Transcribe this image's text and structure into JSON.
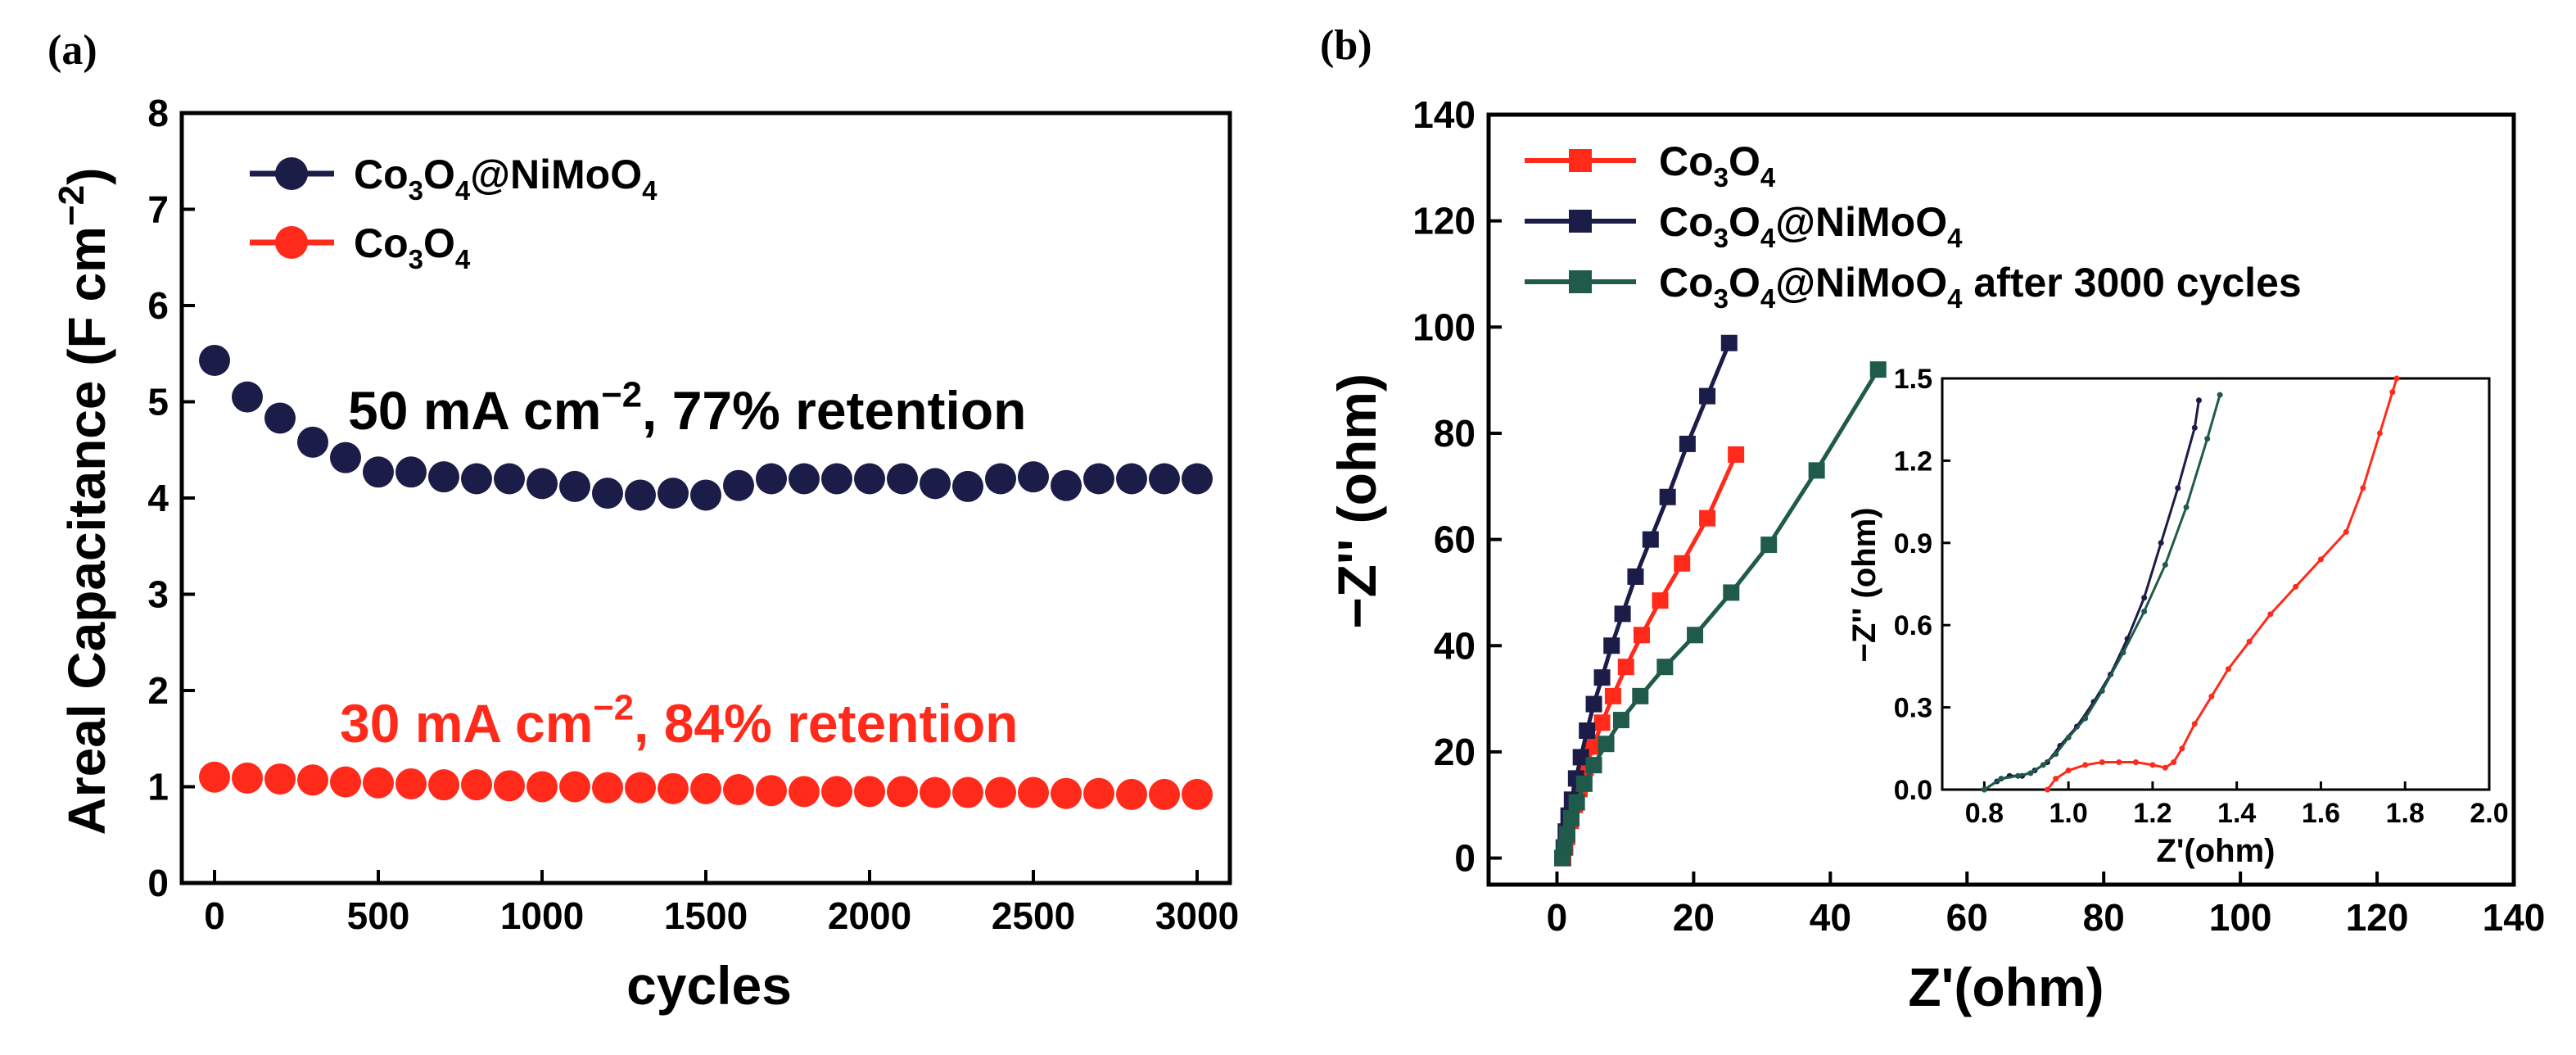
{
  "chart_data": [
    {
      "panel": "(a)",
      "type": "scatter",
      "xlabel": "cycles",
      "ylabel": "Areal Capacitance (F cm",
      "ylabel_sup": "−2",
      "ylabel_close": ")",
      "xlim": [
        -100,
        3100
      ],
      "ylim": [
        0,
        8
      ],
      "xticks": [
        0,
        500,
        1000,
        1500,
        2000,
        2500,
        3000
      ],
      "yticks": [
        0,
        1,
        2,
        3,
        4,
        5,
        6,
        7,
        8
      ],
      "legend": [
        {
          "parts": [
            [
              "Co",
              ""
            ],
            [
              "3",
              "sub"
            ],
            [
              "O",
              ""
            ],
            [
              "4",
              "sub"
            ],
            [
              "@NiMoO",
              ""
            ],
            [
              "4",
              "sub"
            ]
          ],
          "color": "#1c1c48"
        },
        {
          "parts": [
            [
              "Co",
              ""
            ],
            [
              "3",
              "sub"
            ],
            [
              "O",
              ""
            ],
            [
              "4",
              "sub"
            ]
          ],
          "color": "#ff2a1a"
        }
      ],
      "annotations": [
        {
          "parts": [
            [
              "50 mA cm",
              ""
            ],
            [
              "−2",
              "sup"
            ],
            [
              ", 77% retention",
              ""
            ]
          ],
          "color": "#000000"
        },
        {
          "parts": [
            [
              "30 mA cm",
              ""
            ],
            [
              "−2",
              "sup"
            ],
            [
              ", 84% retention",
              ""
            ]
          ],
          "color": "#ff2a1a"
        }
      ],
      "series": [
        {
          "name": "Co3O4@NiMoO4",
          "color": "#1c1c48",
          "x": [
            0,
            100,
            200,
            300,
            400,
            500,
            600,
            700,
            800,
            900,
            1000,
            1100,
            1200,
            1300,
            1400,
            1500,
            1600,
            1700,
            1800,
            1900,
            2000,
            2100,
            2200,
            2300,
            2400,
            2500,
            2600,
            2700,
            2800,
            2900,
            3000
          ],
          "y": [
            5.43,
            5.05,
            4.83,
            4.58,
            4.42,
            4.27,
            4.27,
            4.22,
            4.2,
            4.2,
            4.15,
            4.12,
            4.05,
            4.03,
            4.05,
            4.03,
            4.13,
            4.2,
            4.2,
            4.2,
            4.2,
            4.2,
            4.15,
            4.12,
            4.2,
            4.22,
            4.13,
            4.2,
            4.2,
            4.2,
            4.2
          ]
        },
        {
          "name": "Co3O4",
          "color": "#ff2a1a",
          "x": [
            0,
            100,
            200,
            300,
            400,
            500,
            600,
            700,
            800,
            900,
            1000,
            1100,
            1200,
            1300,
            1400,
            1500,
            1600,
            1700,
            1800,
            1900,
            2000,
            2100,
            2200,
            2300,
            2400,
            2500,
            2600,
            2700,
            2800,
            2900,
            3000
          ],
          "y": [
            1.1,
            1.09,
            1.08,
            1.07,
            1.05,
            1.04,
            1.03,
            1.02,
            1.02,
            1.01,
            1.0,
            1.0,
            0.99,
            0.99,
            0.98,
            0.98,
            0.97,
            0.96,
            0.95,
            0.95,
            0.95,
            0.95,
            0.94,
            0.94,
            0.94,
            0.94,
            0.93,
            0.93,
            0.92,
            0.92,
            0.92
          ]
        }
      ]
    },
    {
      "panel": "(b)",
      "type": "line",
      "xlabel": "Z'(ohm)",
      "ylabel": "−Z'' (ohm)",
      "xlim": [
        -10,
        140
      ],
      "ylim": [
        -5,
        140
      ],
      "xticks": [
        0,
        20,
        40,
        60,
        80,
        100,
        120,
        140
      ],
      "yticks": [
        0,
        20,
        40,
        60,
        80,
        100,
        120,
        140
      ],
      "legend": [
        {
          "parts": [
            [
              "Co",
              ""
            ],
            [
              "3",
              "sub"
            ],
            [
              "O",
              ""
            ],
            [
              "4",
              "sub"
            ]
          ],
          "color": "#ff2a1a"
        },
        {
          "parts": [
            [
              "Co",
              ""
            ],
            [
              "3",
              "sub"
            ],
            [
              "O",
              ""
            ],
            [
              "4",
              "sub"
            ],
            [
              "@NiMoO",
              ""
            ],
            [
              "4",
              "sub"
            ]
          ],
          "color": "#1c1c48"
        },
        {
          "parts": [
            [
              "Co",
              ""
            ],
            [
              "3",
              "sub"
            ],
            [
              "O",
              ""
            ],
            [
              "4",
              "sub"
            ],
            [
              "@NiMoO",
              ""
            ],
            [
              "4",
              "sub"
            ],
            [
              " after 3000 cycles",
              ""
            ]
          ],
          "color": "#1f5a4a"
        }
      ],
      "series": [
        {
          "name": "Co3O4",
          "color": "#ff2a1a",
          "x": [
            0.9,
            1.2,
            1.5,
            2.0,
            2.6,
            3.3,
            4.2,
            5.3,
            6.6,
            8.2,
            10.1,
            12.4,
            15.1,
            18.3,
            22.0,
            26.2
          ],
          "y": [
            0,
            2,
            4,
            7,
            10,
            13,
            17,
            21,
            25.5,
            30.5,
            36,
            42,
            48.5,
            55.5,
            64,
            76
          ]
        },
        {
          "name": "Co3O4@NiMoO4",
          "color": "#1c1c48",
          "x": [
            0.8,
            1.0,
            1.3,
            1.7,
            2.2,
            2.8,
            3.5,
            4.4,
            5.4,
            6.6,
            8.0,
            9.6,
            11.5,
            13.7,
            16.2,
            19.1,
            22.0,
            25.2
          ],
          "y": [
            0,
            2,
            5,
            8,
            11,
            15,
            19,
            24,
            29,
            34,
            40,
            46,
            53,
            60,
            68,
            78,
            87,
            97
          ]
        },
        {
          "name": "Co3O4@NiMoO4 after 3000 cycles",
          "color": "#1f5a4a",
          "x": [
            0.8,
            1.1,
            1.5,
            2.1,
            2.9,
            4.0,
            5.4,
            7.2,
            9.4,
            12.2,
            15.8,
            20.2,
            25.5,
            31.0,
            38.0,
            47.0
          ],
          "y": [
            0,
            2,
            4.5,
            7.5,
            10.5,
            14,
            17.5,
            21.5,
            26,
            30.5,
            36,
            42,
            50,
            59,
            73,
            92
          ]
        }
      ],
      "inset": {
        "xlabel": "Z'(ohm)",
        "ylabel": "−Z'' (ohm)",
        "xlim": [
          0.7,
          2.0
        ],
        "ylim": [
          0,
          1.5
        ],
        "xticks": [
          "0.8",
          "1.0",
          "1.2",
          "1.4",
          "1.6",
          "1.8",
          "2.0"
        ],
        "yticks": [
          "0.0",
          "0.3",
          "0.6",
          "0.9",
          "1.2",
          "1.5"
        ],
        "series": [
          {
            "name": "Co3O4",
            "color": "#ff2a1a",
            "x": [
              0.95,
              0.97,
              1.0,
              1.04,
              1.08,
              1.12,
              1.16,
              1.2,
              1.23,
              1.25,
              1.27,
              1.3,
              1.34,
              1.38,
              1.43,
              1.48,
              1.54,
              1.6,
              1.66,
              1.7,
              1.74,
              1.77,
              1.78
            ],
            "y": [
              0.0,
              0.04,
              0.07,
              0.09,
              0.1,
              0.1,
              0.1,
              0.09,
              0.08,
              0.1,
              0.15,
              0.24,
              0.34,
              0.44,
              0.54,
              0.64,
              0.74,
              0.84,
              0.94,
              1.1,
              1.3,
              1.45,
              1.5
            ]
          },
          {
            "name": "Co3O4@NiMoO4",
            "color": "#1c1c48",
            "x": [
              0.8,
              0.83,
              0.86,
              0.89,
              0.92,
              0.95,
              0.98,
              1.02,
              1.06,
              1.1,
              1.14,
              1.18,
              1.22,
              1.26,
              1.3,
              1.31
            ],
            "y": [
              0.0,
              0.03,
              0.05,
              0.05,
              0.07,
              0.1,
              0.16,
              0.23,
              0.32,
              0.42,
              0.55,
              0.7,
              0.9,
              1.1,
              1.32,
              1.42
            ]
          },
          {
            "name": "Co3O4@NiMoO4 after 3000 cycles",
            "color": "#1f5a4a",
            "x": [
              0.8,
              0.84,
              0.88,
              0.91,
              0.94,
              0.97,
              1.0,
              1.04,
              1.08,
              1.13,
              1.18,
              1.23,
              1.28,
              1.33,
              1.36
            ],
            "y": [
              0.0,
              0.04,
              0.05,
              0.06,
              0.09,
              0.13,
              0.19,
              0.26,
              0.36,
              0.5,
              0.65,
              0.82,
              1.03,
              1.28,
              1.44
            ]
          }
        ]
      }
    }
  ]
}
